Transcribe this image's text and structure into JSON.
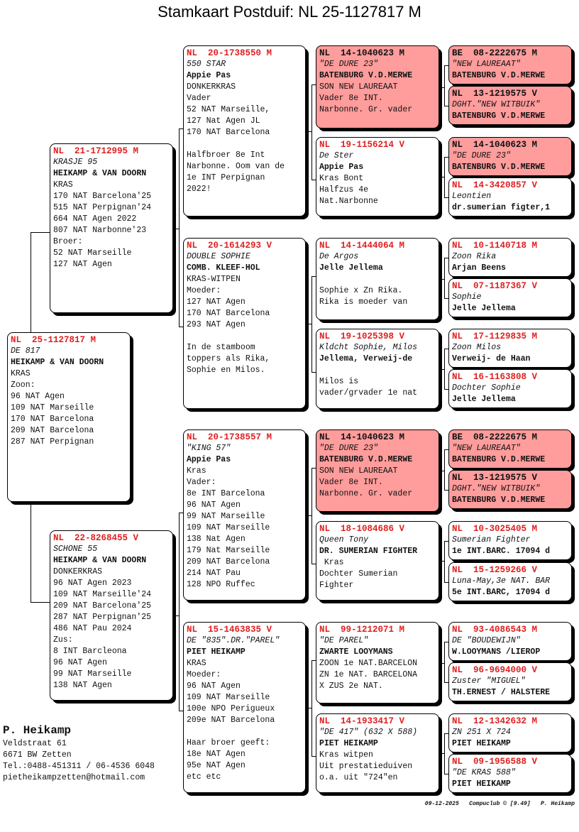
{
  "title": "Stamkaart Postduif: NL  25-1127817 M",
  "colors": {
    "ring_red": "#e02020",
    "highlight_bg": "#ff9c9c"
  },
  "pigeons": {
    "s": {
      "ring": "NL  25-1127817 M",
      "name": "DE 817",
      "owner": "HEIKAMP & VAN DOORN",
      "lines": [
        "KRAS",
        "Zoon:",
        "96 NAT Agen",
        "109 NAT Marseille",
        "170 NAT Barcelona",
        "209 NAT Barcelona",
        "287 NAT Perpignan"
      ],
      "highlight": false
    },
    "f": {
      "ring": "NL  21-1712995 M",
      "name": "KRASJE 95",
      "owner": "HEIKAMP & VAN DOORN",
      "lines": [
        "KRAS",
        "170 NAT Barcelona'25",
        "515 NAT Perpignan'24",
        "664 NAT Agen 2022",
        "807 NAT Narbonne'23",
        "Broer:",
        "52 NAT Marseille",
        "127 NAT Agen"
      ],
      "highlight": false
    },
    "m": {
      "ring": "NL  22-8268455 V",
      "name": "SCHONE 55",
      "owner": "HEIKAMP & VAN DOORN",
      "lines": [
        "DONKERKRAS",
        "96 NAT Agen 2023",
        "109 NAT Marseille'24",
        "209 NAT Barcelona'25",
        "287 NAT Perpignan'25",
        "486 NAT Pau 2024",
        "Zus:",
        "8 INT Barcleona",
        "96 NAT Agen",
        "99 NAT Marseille",
        "138 NAT Agen"
      ],
      "highlight": false
    },
    "ff": {
      "ring": "NL  20-1738550 M",
      "name": "550 STAR",
      "owner": "Appie Pas",
      "lines": [
        "DONKERKRAS",
        "Vader",
        "52 NAT Marseille,",
        "127 Nat Agen JL",
        "170 NAT Barcelona",
        "",
        "Halfbroer 8e Int",
        "Narbonne. Oom van de",
        "1e INT Perpignan",
        "2022!"
      ],
      "highlight": false
    },
    "fm": {
      "ring": "NL  20-1614293 V",
      "name": "DOUBLE SOPHIE",
      "owner": "COMB. KLEEF-HOL",
      "lines": [
        "KRAS-WITPEN",
        "Moeder:",
        "127 NAT Agen",
        "170 NAT Barcelona",
        "293 NAT Agen",
        "",
        "In de stamboom",
        "toppers als Rika,",
        "Sophie en Milos."
      ],
      "highlight": false
    },
    "mf": {
      "ring": "NL  20-1738557 M",
      "name": "\"KING 57\"",
      "owner": "Appie Pas",
      "lines": [
        "Kras",
        "Vader:",
        "8e INT Barcelona",
        "96 NAT Agen",
        "99 NAT Marseille",
        "109 NAT Marseille",
        "138 Nat Agen",
        "179 Nat Marseille",
        "209 NAT Barcelona",
        "214 NAT Pau",
        "128 NPO Ruffec"
      ],
      "highlight": false
    },
    "mm": {
      "ring": "NL  15-1463835 V",
      "name": "DE \"835\".DR.\"PAREL\"",
      "owner": "PIET HEIKAMP",
      "lines": [
        "KRAS",
        "Moeder:",
        "96 NAT Agen",
        "109 NAT Marseille",
        "100e NPO Perigueux",
        "209e NAT Barcelona",
        "",
        "Haar broer geeft:",
        "18e NAT Agen",
        "95e NAT Agen",
        "etc etc"
      ],
      "highlight": false
    },
    "fff": {
      "ring": "NL  14-1040623 M",
      "name": "\"DE DURE 23\"",
      "owner": "BATENBURG V.D.MERWE",
      "lines": [
        "SON NEW LAUREAAT",
        "Vader 8e INT.",
        "Narbonne. Gr. vader"
      ],
      "highlight": true
    },
    "ffm": {
      "ring": "NL  19-1156214 V",
      "name": "De Ster",
      "owner": "Appie Pas",
      "lines": [
        "Kras Bont",
        "Halfzus 4e",
        "Nat.Narbonne"
      ],
      "highlight": false
    },
    "fmf": {
      "ring": "NL  14-1444064 M",
      "name": "De Argos",
      "owner": "Jelle Jellema",
      "lines": [
        "",
        "Sophie x Zn Rika.",
        "Rika is moeder van"
      ],
      "highlight": false
    },
    "fmm": {
      "ring": "NL  19-1025398 V",
      "name": "Kldcht Sophie, Milos",
      "owner": "Jellema, Verweij-de",
      "lines": [
        "",
        "Milos is",
        "vader/grvader 1e nat"
      ],
      "highlight": false
    },
    "mff": {
      "ring": "NL  14-1040623 M",
      "name": "\"DE DURE 23\"",
      "owner": "BATENBURG V.D.MERWE",
      "lines": [
        "SON NEW LAUREAAT",
        "Vader 8e INT.",
        "Narbonne. Gr. vader"
      ],
      "highlight": true
    },
    "mfm": {
      "ring": "NL  18-1084686 V",
      "name": "Queen Tony",
      "owner": "DR. SUMERIAN FIGHTER",
      "lines": [
        " Kras",
        "Dochter Sumerian",
        "Fighter"
      ],
      "highlight": false
    },
    "mmf": {
      "ring": "NL  99-1212071 M",
      "name": "\"DE PAREL\"",
      "owner": "ZWARTE LOOYMANS",
      "lines": [
        "ZOON 1e NAT.BARCELON",
        "ZN 1e NAT. BARCELONA",
        "X ZUS 2e NAT."
      ],
      "highlight": false
    },
    "mmm": {
      "ring": "NL  14-1933417 V",
      "name": "\"DE 417\" (632 X 588)",
      "owner": "PIET HEIKAMP",
      "lines": [
        "Kras witpen",
        "Uit prestatieduiven",
        "o.a. uit \"724\"en"
      ],
      "highlight": false
    },
    "ffff": {
      "ring": "BE  08-2222675 M",
      "name": "\"NEW LAUREAAT\"",
      "owner": "BATENBURG V.D.MERWE",
      "lines": [],
      "highlight": true
    },
    "fffm": {
      "ring": "NL  13-1219575 V",
      "name": "DGHT.\"NEW WITBUIK\"",
      "owner": "BATENBURG V.D.MERWE",
      "lines": [],
      "highlight": true
    },
    "ffmf": {
      "ring": "NL  14-1040623 M",
      "name": "\"DE DURE 23\"",
      "owner": "BATENBURG V.D.MERWE",
      "lines": [],
      "highlight": true
    },
    "ffmm": {
      "ring": "NL  14-3420857 V",
      "name": "Leontien",
      "owner": "dr.sumerian figter,1",
      "lines": [],
      "highlight": false
    },
    "fmff": {
      "ring": "NL  10-1140718 M",
      "name": "Zoon Rika",
      "owner": "Arjan Beens",
      "lines": [],
      "highlight": false
    },
    "fmfm": {
      "ring": "NL  07-1187367 V",
      "name": "Sophie",
      "owner": "Jelle Jellema",
      "lines": [],
      "highlight": false
    },
    "fmmf": {
      "ring": "NL  17-1129835 M",
      "name": "Zoon Milos",
      "owner": "Verweij- de Haan",
      "lines": [],
      "highlight": false
    },
    "fmmm": {
      "ring": "NL  16-1163808 V",
      "name": "Dochter Sophie",
      "owner": "Jelle Jellema",
      "lines": [],
      "highlight": false
    },
    "mfff": {
      "ring": "BE  08-2222675 M",
      "name": "\"NEW LAUREAAT\"",
      "owner": "BATENBURG V.D.MERWE",
      "lines": [],
      "highlight": true
    },
    "mffm": {
      "ring": "NL  13-1219575 V",
      "name": "DGHT.\"NEW WITBUIK\"",
      "owner": "BATENBURG V.D.MERWE",
      "lines": [],
      "highlight": true
    },
    "mfmf": {
      "ring": "NL  10-3025405 M",
      "name": "Sumerian Fighter",
      "owner": "1e INT.BARC. 17094 d",
      "lines": [],
      "highlight": false
    },
    "mfmm": {
      "ring": "NL  15-1259266 V",
      "name": "Luna-May,3e NAT. BAR",
      "owner": "5e INT.BARC, 17094 d",
      "lines": [],
      "highlight": false
    },
    "mmff": {
      "ring": "NL  93-4086543 M",
      "name": "DE \"BOUDEWIJN\"",
      "owner": "W.LOOYMANS /LIEROP",
      "lines": [],
      "highlight": false
    },
    "mmfm": {
      "ring": "NL  96-9694000 V",
      "name": "Zuster \"MIGUEL\"",
      "owner": "TH.ERNEST / HALSTERE",
      "lines": [],
      "highlight": false
    },
    "mmmf": {
      "ring": "NL  12-1342632 M",
      "name": "ZN 251 X 724",
      "owner": "PIET HEIKAMP",
      "lines": [],
      "highlight": false
    },
    "mmmm": {
      "ring": "NL  09-1956588 V",
      "name": "\"DE KRAS 588\"",
      "owner": "PIET HEIKAMP",
      "lines": [],
      "highlight": false
    }
  },
  "breeder": {
    "name": "P. Heikamp",
    "street": "Veldstraat 61",
    "city": "6671 BW  Zetten",
    "phone": "Tel.:0488-451311 / 06-4536 6048",
    "email": "pietheikampzetten@hotmail.com"
  },
  "footer": "09-12-2025   Compuclub © [9.49]   P. Heikamp"
}
